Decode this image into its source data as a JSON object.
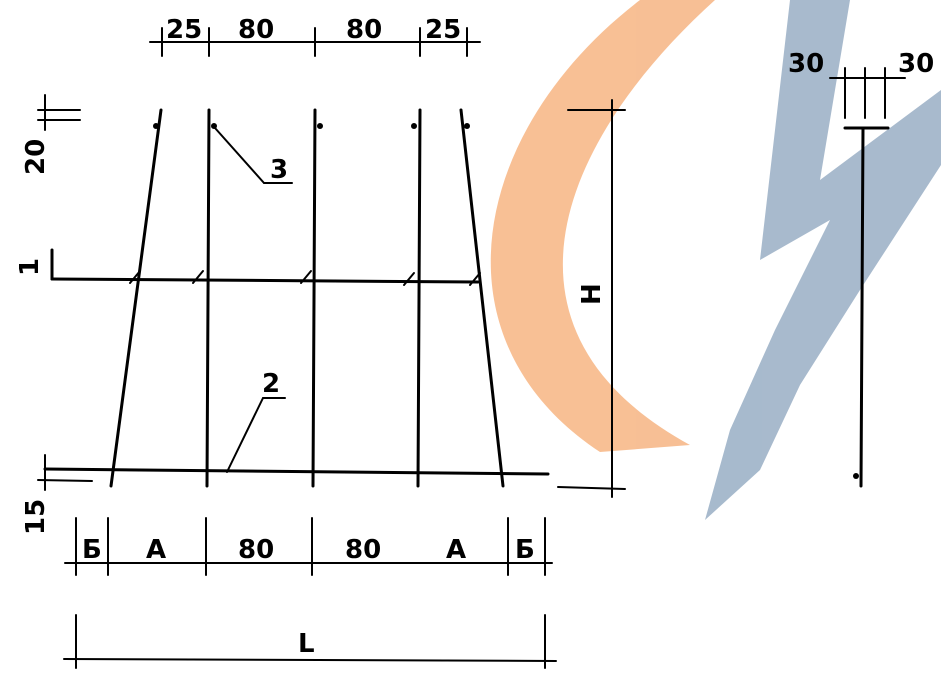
{
  "colors": {
    "line": "#000000",
    "watermark_orange": "#f7b98a",
    "watermark_blue": "#9eb3c8",
    "background": "#ffffff"
  },
  "dimensions": {
    "top": [
      "25",
      "80",
      "80",
      "25"
    ],
    "bottom": [
      "Б",
      "А",
      "80",
      "80",
      "А",
      "Б"
    ],
    "overall_length": "L",
    "height": "H",
    "left_top": "20",
    "left_bottom": "15",
    "right_detail": [
      "30",
      "30"
    ]
  },
  "callouts": {
    "callout_3": "3",
    "callout_2": "2",
    "callout_1": "1"
  },
  "watermark": {
    "icon": "logo-watermark-icon"
  }
}
